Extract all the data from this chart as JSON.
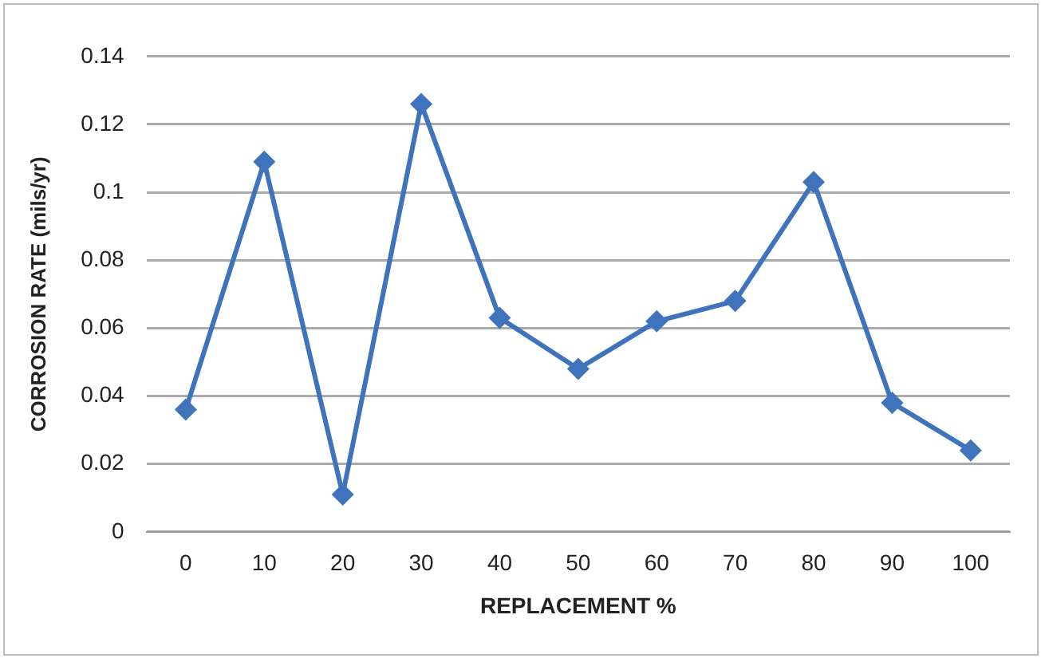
{
  "chart_data": {
    "type": "line",
    "xlabel": "REPLACEMENT %",
    "ylabel": "CORROSION RATE (mils/yr)",
    "categories": [
      "0",
      "10",
      "20",
      "30",
      "40",
      "50",
      "60",
      "70",
      "80",
      "90",
      "100"
    ],
    "series": [
      {
        "color": "#3f74bc",
        "values": [
          0.036,
          0.109,
          0.011,
          0.126,
          0.063,
          0.048,
          0.062,
          0.068,
          0.103,
          0.038,
          0.024
        ]
      }
    ],
    "ylim": [
      0,
      0.14
    ],
    "yticks": [
      0,
      0.02,
      0.04,
      0.06,
      0.08,
      0.1,
      0.12,
      0.14
    ],
    "grid": "y",
    "legend": false,
    "marker": "diamond",
    "line_style": "solid"
  }
}
